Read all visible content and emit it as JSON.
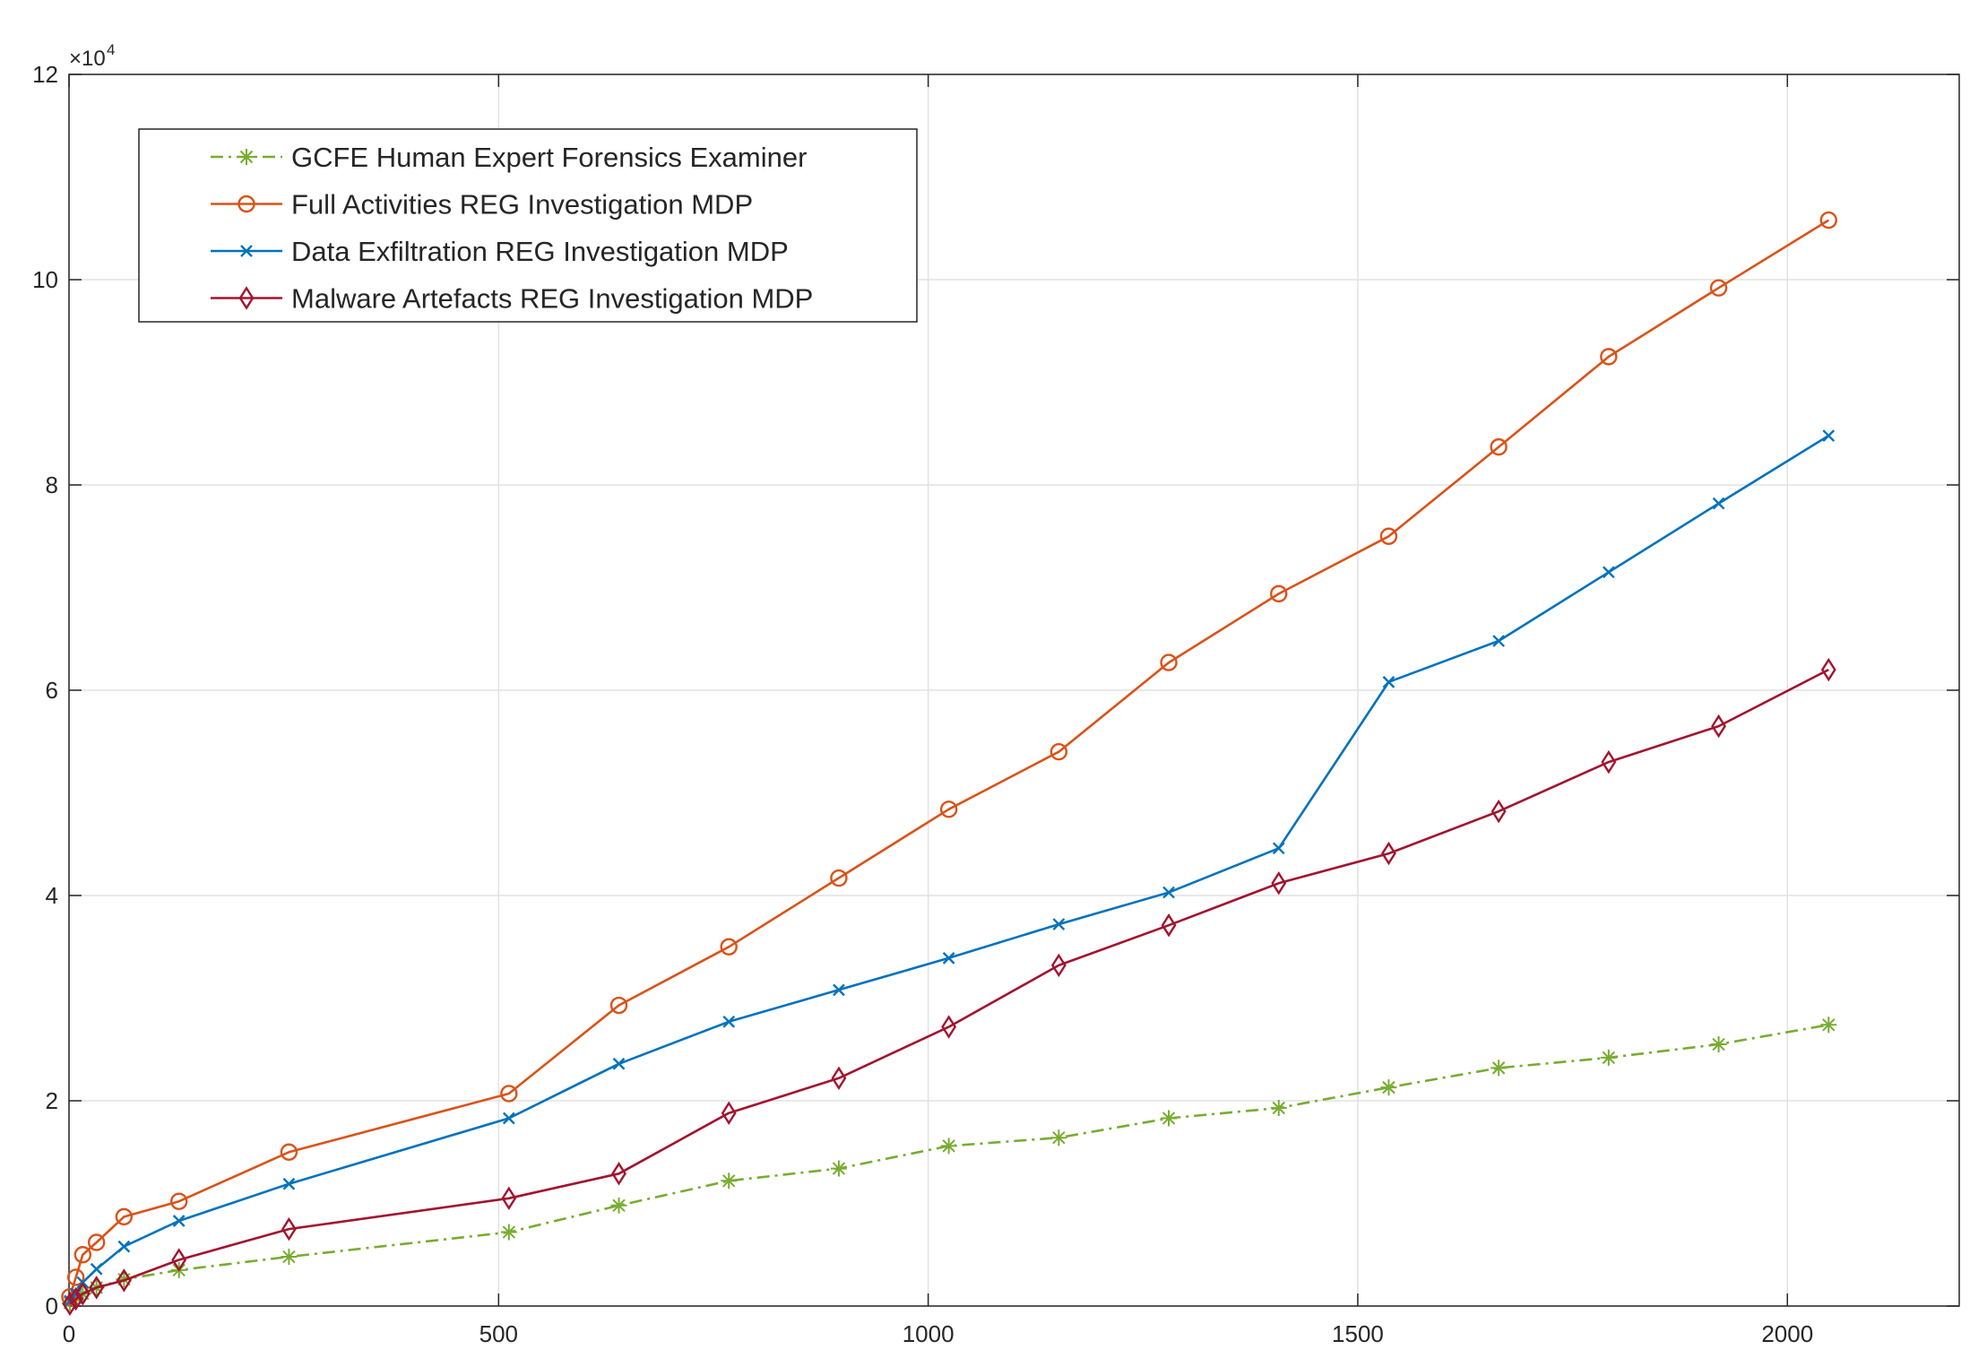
{
  "chart_data": {
    "type": "line",
    "title": "",
    "xlabel": "",
    "ylabel": "",
    "xlim": [
      0,
      2200
    ],
    "ylim": [
      0,
      120000
    ],
    "y_multiplier_label": "×10",
    "y_multiplier_exponent": "4",
    "grid": true,
    "legend_position": "top-left",
    "x_ticks": [
      {
        "value": 0,
        "label": "0"
      },
      {
        "value": 500,
        "label": "500"
      },
      {
        "value": 1000,
        "label": "1000"
      },
      {
        "value": 1500,
        "label": "1500"
      },
      {
        "value": 2000,
        "label": "2000"
      }
    ],
    "y_ticks": [
      {
        "value": 0,
        "label": "0"
      },
      {
        "value": 20000,
        "label": "2"
      },
      {
        "value": 40000,
        "label": "4"
      },
      {
        "value": 60000,
        "label": "6"
      },
      {
        "value": 80000,
        "label": "8"
      },
      {
        "value": 100000,
        "label": "10"
      },
      {
        "value": 120000,
        "label": "12"
      }
    ],
    "series": [
      {
        "name": "GCFE Human Expert Forensics Examiner",
        "color": "#77ac30",
        "marker": "asterisk",
        "dash": "dashdot",
        "points": [
          [
            1,
            300
          ],
          [
            8,
            800
          ],
          [
            16,
            1200
          ],
          [
            32,
            1800
          ],
          [
            64,
            2600
          ],
          [
            128,
            3500
          ],
          [
            256,
            4800
          ],
          [
            512,
            7200
          ],
          [
            640,
            9800
          ],
          [
            768,
            12200
          ],
          [
            896,
            13400
          ],
          [
            1024,
            15600
          ],
          [
            1152,
            16400
          ],
          [
            1280,
            18300
          ],
          [
            1408,
            19300
          ],
          [
            1536,
            21300
          ],
          [
            1664,
            23200
          ],
          [
            1792,
            24200
          ],
          [
            1920,
            25500
          ],
          [
            2048,
            27400
          ]
        ]
      },
      {
        "name": "Full Activities REG Investigation MDP",
        "color": "#d95319",
        "marker": "circle",
        "dash": "solid",
        "points": [
          [
            1,
            900
          ],
          [
            8,
            2800
          ],
          [
            16,
            5000
          ],
          [
            32,
            6200
          ],
          [
            64,
            8700
          ],
          [
            128,
            10200
          ],
          [
            256,
            15000
          ],
          [
            512,
            20700
          ],
          [
            640,
            29300
          ],
          [
            768,
            35000
          ],
          [
            896,
            41700
          ],
          [
            1024,
            48400
          ],
          [
            1152,
            54000
          ],
          [
            1280,
            62700
          ],
          [
            1408,
            69400
          ],
          [
            1536,
            75000
          ],
          [
            1664,
            83700
          ],
          [
            1792,
            92500
          ],
          [
            1920,
            99200
          ],
          [
            2048,
            105800
          ]
        ]
      },
      {
        "name": "Data Exfiltration REG Investigation MDP",
        "color": "#0072bd",
        "marker": "x",
        "dash": "solid",
        "points": [
          [
            1,
            500
          ],
          [
            8,
            1200
          ],
          [
            16,
            2300
          ],
          [
            32,
            3600
          ],
          [
            64,
            5800
          ],
          [
            128,
            8300
          ],
          [
            256,
            11900
          ],
          [
            512,
            18300
          ],
          [
            640,
            23600
          ],
          [
            768,
            27700
          ],
          [
            896,
            30800
          ],
          [
            1024,
            33900
          ],
          [
            1152,
            37200
          ],
          [
            1280,
            40300
          ],
          [
            1408,
            44600
          ],
          [
            1536,
            60800
          ],
          [
            1664,
            64800
          ],
          [
            1792,
            71500
          ],
          [
            1920,
            78200
          ],
          [
            2048,
            84800
          ]
        ]
      },
      {
        "name": "Malware Artefacts REG Investigation MDP",
        "color": "#a2142f",
        "marker": "diamond",
        "dash": "solid",
        "points": [
          [
            1,
            200
          ],
          [
            8,
            700
          ],
          [
            16,
            1200
          ],
          [
            32,
            1800
          ],
          [
            64,
            2500
          ],
          [
            128,
            4500
          ],
          [
            256,
            7500
          ],
          [
            512,
            10500
          ],
          [
            640,
            12900
          ],
          [
            768,
            18800
          ],
          [
            896,
            22200
          ],
          [
            1024,
            27200
          ],
          [
            1152,
            33200
          ],
          [
            1280,
            37100
          ],
          [
            1408,
            41200
          ],
          [
            1536,
            44100
          ],
          [
            1664,
            48200
          ],
          [
            1792,
            53000
          ],
          [
            1920,
            56500
          ],
          [
            2048,
            62000
          ]
        ]
      }
    ]
  }
}
